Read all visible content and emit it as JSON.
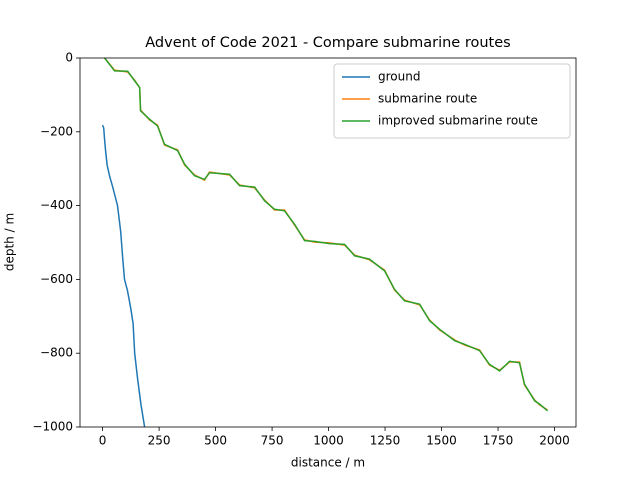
{
  "chart_data": {
    "type": "line",
    "title": "Advent of Code 2021 - Compare submarine routes",
    "x_label": "distance / m",
    "y_label": "depth / m",
    "xlim": [
      -100,
      2095
    ],
    "ylim": [
      -1000,
      0
    ],
    "xticks": [
      0,
      250,
      500,
      750,
      1000,
      1250,
      1500,
      1750,
      2000
    ],
    "yticks": [
      0,
      {
        "value": -200,
        "label": "−200"
      },
      {
        "value": -400,
        "label": "−400"
      },
      {
        "value": -600,
        "label": "−600"
      },
      {
        "value": -800,
        "label": "−800"
      },
      {
        "value": -1000,
        "label": "−1000"
      }
    ],
    "legend": "upper right",
    "series": [
      {
        "name": "ground",
        "color": "#1f77b4",
        "x": [
          0,
          5,
          8,
          13,
          20,
          31,
          45,
          66,
          80,
          90,
          97,
          110,
          125,
          135,
          142,
          155,
          170,
          186
        ],
        "values": [
          -182,
          -190,
          -215,
          -250,
          -290,
          -320,
          -350,
          -400,
          -470,
          -550,
          -600,
          -630,
          -680,
          -720,
          -800,
          -870,
          -940,
          -1000
        ]
      },
      {
        "name": "submarine route",
        "color": "#ff7f0e",
        "x": [
          9,
          53,
          111,
          142,
          164,
          168,
          208,
          243,
          274,
          332,
          363,
          407,
          451,
          473,
          562,
          606,
          673,
          717,
          761,
          805,
          850,
          894,
          938,
          1004,
          1071,
          1115,
          1181,
          1248,
          1292,
          1336,
          1403,
          1447,
          1491,
          1558,
          1602,
          1668,
          1712,
          1757,
          1801,
          1845,
          1867,
          1912,
          1934,
          1969
        ],
        "values": [
          0,
          -33,
          -38,
          -60,
          -81,
          -141,
          -168,
          -182,
          -236,
          -249,
          -290,
          -317,
          -331,
          -309,
          -317,
          -344,
          -352,
          -385,
          -412,
          -412,
          -453,
          -493,
          -499,
          -501,
          -507,
          -534,
          -547,
          -575,
          -629,
          -656,
          -669,
          -710,
          -737,
          -764,
          -778,
          -791,
          -832,
          -846,
          -824,
          -824,
          -886,
          -927,
          -940,
          -954
        ]
      },
      {
        "name": "improved submarine route",
        "color": "#2ca02c",
        "x": [
          9,
          53,
          111,
          142,
          164,
          168,
          208,
          243,
          274,
          332,
          363,
          407,
          451,
          473,
          562,
          606,
          673,
          717,
          761,
          805,
          850,
          894,
          938,
          1004,
          1071,
          1115,
          1181,
          1248,
          1292,
          1336,
          1403,
          1447,
          1491,
          1558,
          1602,
          1668,
          1712,
          1757,
          1801,
          1845,
          1867,
          1912,
          1934,
          1969
        ],
        "values": [
          0,
          -35,
          -36,
          -62,
          -80,
          -143,
          -166,
          -184,
          -234,
          -251,
          -288,
          -319,
          -329,
          -311,
          -315,
          -346,
          -350,
          -387,
          -410,
          -414,
          -451,
          -495,
          -497,
          -503,
          -505,
          -536,
          -545,
          -577,
          -627,
          -658,
          -667,
          -712,
          -735,
          -766,
          -776,
          -793,
          -830,
          -848,
          -822,
          -826,
          -884,
          -929,
          -938,
          -956
        ]
      }
    ]
  }
}
